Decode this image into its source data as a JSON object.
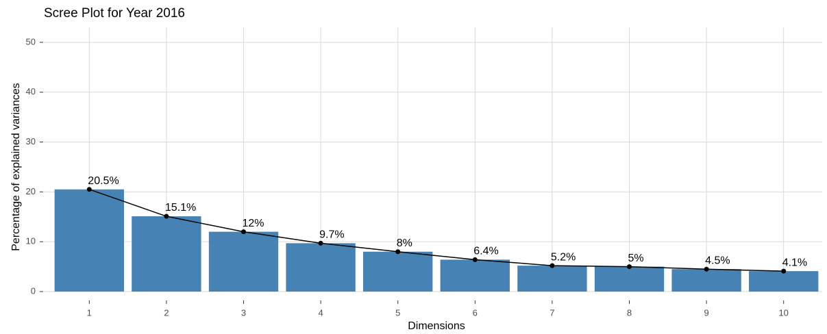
{
  "chart_data": {
    "type": "bar",
    "title": "Scree Plot for Year 2016",
    "x_label": "Dimensions",
    "y_label": "Percentage of explained variances",
    "categories": [
      "1",
      "2",
      "3",
      "4",
      "5",
      "6",
      "7",
      "8",
      "9",
      "10"
    ],
    "values": [
      20.5,
      15.1,
      12,
      9.7,
      8,
      6.4,
      5.2,
      5,
      4.5,
      4.1
    ],
    "value_labels": [
      "20.5%",
      "15.1%",
      "12%",
      "9.7%",
      "8%",
      "6.4%",
      "5.2%",
      "5%",
      "4.5%",
      "4.1%"
    ],
    "color": "#4682b4",
    "line_color": "#000000",
    "ylim": [
      0,
      53
    ],
    "yticks": [
      0,
      10,
      20,
      30,
      40,
      50
    ],
    "grid": true
  }
}
